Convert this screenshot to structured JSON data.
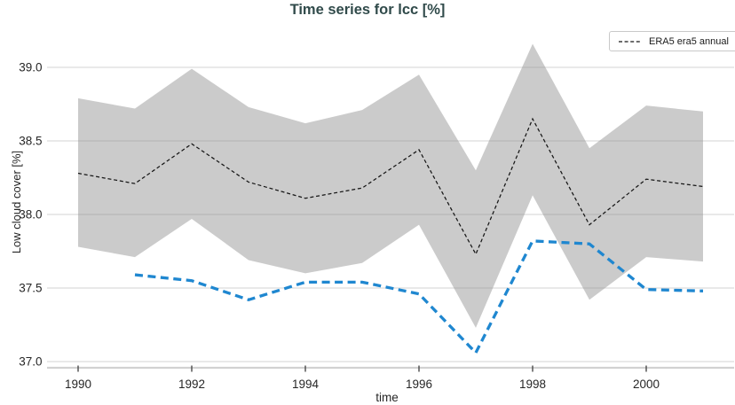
{
  "figure": {
    "title": "Time series for lcc [%]",
    "xlabel": "time",
    "ylabel": "Low cloud cover [%]"
  },
  "legend": {
    "position": "top-right",
    "items": [
      {
        "label": "ERA5 era5 annual",
        "marker": "black-dashed-line"
      }
    ]
  },
  "chart_data": {
    "type": "line",
    "title": "Time series for lcc [%]",
    "xlabel": "time",
    "ylabel": "Low cloud cover [%]",
    "xlim": [
      1989.45,
      2001.55
    ],
    "ylim": [
      36.96,
      39.26
    ],
    "grid": "horizontal-only",
    "legend_position": "top-right",
    "x_ticks": [
      1990,
      1992,
      1994,
      1996,
      1998,
      2000
    ],
    "x_tick_labels": [
      "1990",
      "1992",
      "1994",
      "1996",
      "1998",
      "2000"
    ],
    "y_ticks": [
      37.0,
      37.5,
      38.0,
      38.5,
      39.0
    ],
    "y_tick_labels": [
      "37.0",
      "37.5",
      "38.0",
      "38.5",
      "39.0"
    ],
    "series": [
      {
        "name": "ERA5 era5 annual uncertainty band",
        "type": "band",
        "fill": "rgba(140,140,140,0.45)",
        "fill_effective_hex": "#cbcbcb",
        "x": [
          1990,
          1991,
          1992,
          1993,
          1994,
          1995,
          1996,
          1997,
          1998,
          1999,
          2000,
          2001
        ],
        "y_upper": [
          38.79,
          38.72,
          38.99,
          38.73,
          38.62,
          38.71,
          38.95,
          38.3,
          39.16,
          38.45,
          38.74,
          38.7
        ],
        "y_lower": [
          37.78,
          37.71,
          37.97,
          37.69,
          37.6,
          37.67,
          37.93,
          37.23,
          38.13,
          37.42,
          37.71,
          37.68
        ]
      },
      {
        "name": "ERA5 era5 annual",
        "type": "line",
        "style": "dashed-thin",
        "color": "#161616",
        "x": [
          1990,
          1991,
          1992,
          1993,
          1994,
          1995,
          1996,
          1997,
          1998,
          1999,
          2000,
          2001
        ],
        "y": [
          38.28,
          38.21,
          38.48,
          38.22,
          38.11,
          38.18,
          38.44,
          37.73,
          38.65,
          37.93,
          38.24,
          38.19
        ]
      },
      {
        "name": "unlabeled-blue-dashed-series",
        "type": "line",
        "style": "dashed-thick",
        "color": "#1f87d0",
        "x": [
          1991,
          1992,
          1993,
          1994,
          1995,
          1996,
          1997,
          1998,
          1999,
          2000,
          2001
        ],
        "y": [
          37.59,
          37.55,
          37.42,
          37.54,
          37.54,
          37.46,
          37.06,
          37.82,
          37.8,
          37.49,
          37.48
        ]
      }
    ]
  },
  "colors": {
    "background": "#ffffff",
    "title": "#314b4b",
    "axis_text": "#262626",
    "gridline": "#dcdcdc",
    "spine": "#d2d2d2",
    "tick_mark": "#4a4a4a",
    "legend_border": "#c9c9c9"
  }
}
